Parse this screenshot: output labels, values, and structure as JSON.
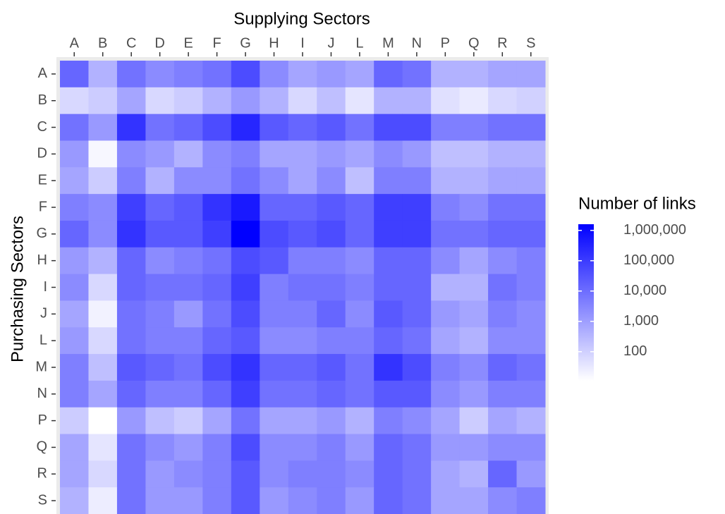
{
  "chart_data": {
    "type": "heatmap",
    "xlabel": "Supplying Sectors",
    "ylabel": "Purchasing Sectors",
    "legend_title": "Number of links",
    "x_categories": [
      "A",
      "B",
      "C",
      "D",
      "E",
      "F",
      "G",
      "H",
      "I",
      "J",
      "L",
      "M",
      "N",
      "P",
      "Q",
      "R",
      "S"
    ],
    "y_categories": [
      "A",
      "B",
      "C",
      "D",
      "E",
      "F",
      "G",
      "H",
      "I",
      "J",
      "L",
      "M",
      "N",
      "P",
      "Q",
      "R",
      "S"
    ],
    "log_scale": true,
    "color_low": "#ffffff",
    "color_high": "#0000ff",
    "zlim": [
      11,
      1600000
    ],
    "zticks": [
      {
        "value": 1000000,
        "label": "1,000,000"
      },
      {
        "value": 100000,
        "label": "100,000"
      },
      {
        "value": 10000,
        "label": "10,000"
      },
      {
        "value": 1000,
        "label": "1,000"
      },
      100
    ],
    "values": [
      [
        14000,
        400,
        7700,
        2400,
        4300,
        7700,
        46000,
        2400,
        720,
        1300,
        720,
        14000,
        7700,
        400,
        400,
        720,
        720
      ],
      [
        67,
        120,
        720,
        67,
        120,
        400,
        1300,
        400,
        67,
        220,
        37,
        400,
        400,
        47,
        29,
        67,
        95
      ],
      [
        7700,
        1300,
        150000,
        7700,
        14000,
        46000,
        270000,
        25000,
        14000,
        25000,
        7700,
        46000,
        46000,
        4300,
        4300,
        7700,
        7700
      ],
      [
        1300,
        16,
        2400,
        1300,
        400,
        2400,
        4300,
        720,
        720,
        1300,
        720,
        2400,
        1300,
        220,
        220,
        400,
        400
      ],
      [
        720,
        120,
        4300,
        400,
        2400,
        2400,
        7700,
        2400,
        720,
        2400,
        220,
        4300,
        4300,
        400,
        400,
        720,
        720
      ],
      [
        4300,
        2400,
        83000,
        14000,
        25000,
        150000,
        490000,
        14000,
        14000,
        25000,
        14000,
        83000,
        83000,
        4300,
        2400,
        7700,
        7700
      ],
      [
        14000,
        2400,
        150000,
        25000,
        25000,
        83000,
        1600000,
        46000,
        25000,
        46000,
        14000,
        83000,
        83000,
        7700,
        7700,
        14000,
        14000
      ],
      [
        1300,
        400,
        14000,
        2400,
        4300,
        7700,
        46000,
        25000,
        4300,
        4300,
        2400,
        14000,
        14000,
        2400,
        720,
        2400,
        4300
      ],
      [
        2400,
        67,
        14000,
        7700,
        7700,
        14000,
        83000,
        4300,
        7700,
        7700,
        4300,
        14000,
        14000,
        400,
        400,
        7700,
        4300
      ],
      [
        720,
        20,
        7700,
        4300,
        1300,
        7700,
        46000,
        4300,
        4300,
        14000,
        2400,
        25000,
        14000,
        1300,
        720,
        4300,
        2400
      ],
      [
        1300,
        67,
        7700,
        4300,
        4300,
        14000,
        25000,
        2400,
        2400,
        4300,
        4300,
        14000,
        7700,
        720,
        400,
        2400,
        2400
      ],
      [
        4300,
        220,
        25000,
        14000,
        7700,
        46000,
        150000,
        14000,
        14000,
        25000,
        7700,
        150000,
        46000,
        4300,
        2400,
        14000,
        7700
      ],
      [
        4300,
        720,
        14000,
        4300,
        4300,
        14000,
        83000,
        7700,
        7700,
        14000,
        7700,
        25000,
        25000,
        2400,
        1300,
        4300,
        4300
      ],
      [
        120,
        11,
        1300,
        220,
        120,
        720,
        7700,
        720,
        720,
        1300,
        400,
        4300,
        2400,
        720,
        120,
        720,
        400
      ],
      [
        720,
        37,
        7700,
        2400,
        1300,
        4300,
        46000,
        2400,
        2400,
        4300,
        1300,
        14000,
        7700,
        1300,
        1300,
        2400,
        2400
      ],
      [
        720,
        67,
        7700,
        1300,
        2400,
        4300,
        25000,
        2400,
        4300,
        4300,
        2400,
        14000,
        7700,
        720,
        400,
        14000,
        1300
      ],
      [
        400,
        26,
        7700,
        1300,
        1300,
        4300,
        25000,
        1300,
        2400,
        4300,
        1300,
        14000,
        7700,
        720,
        720,
        2400,
        4300
      ]
    ]
  }
}
